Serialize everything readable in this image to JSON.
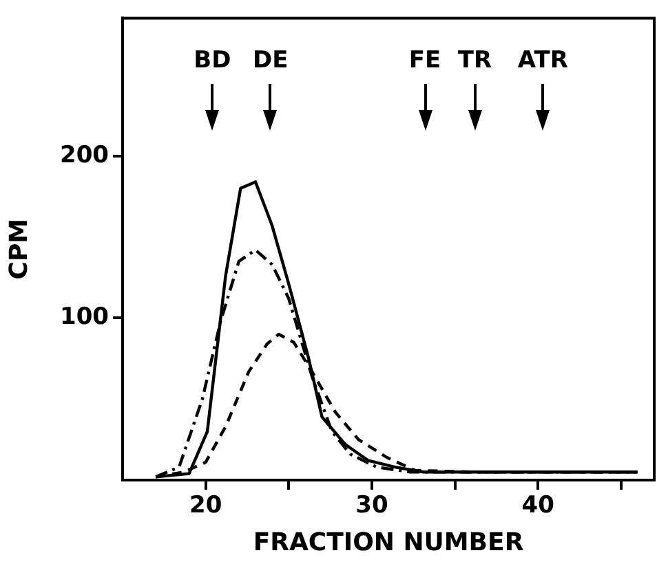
{
  "chart_data": {
    "type": "line",
    "xlabel": "FRACTION NUMBER",
    "ylabel": "CPM",
    "xlim": [
      15,
      47
    ],
    "ylim": [
      0,
      285
    ],
    "xticks": [
      20,
      {
        "value": 25,
        "label": null
      },
      30,
      {
        "value": 35,
        "label": null
      },
      40,
      {
        "value": 45,
        "label": null
      }
    ],
    "yticks": [
      100,
      200
    ],
    "grid": false,
    "legend": false,
    "marker": "none",
    "series": [
      {
        "color": "#000000",
        "line_style": "solid",
        "x": [
          17,
          19,
          20.1,
          21.2,
          22.1,
          23,
          24,
          25,
          26.2,
          27,
          28.4,
          29.8,
          31.4,
          33.1,
          36,
          40,
          43,
          46
        ],
        "values": [
          2,
          4,
          30,
          126,
          180,
          184,
          157,
          121,
          75,
          39,
          22,
          12,
          8,
          5,
          5,
          5,
          5,
          5
        ]
      },
      {
        "color": "#000000",
        "line_style": "dashdot",
        "x": [
          17,
          18.4,
          19.8,
          20.9,
          22,
          23,
          24,
          25,
          26.4,
          27.6,
          28.7,
          30.3,
          32.3,
          36,
          40,
          43,
          46
        ],
        "values": [
          2,
          8,
          50,
          98,
          135,
          142,
          133,
          112,
          64,
          30,
          16,
          8,
          5,
          5,
          5,
          5,
          5
        ]
      },
      {
        "color": "#000000",
        "line_style": "dashed",
        "x": [
          17,
          18.7,
          20,
          21.2,
          22.6,
          23.7,
          24.4,
          25.3,
          26.4,
          27.8,
          29.2,
          30.9,
          32.6,
          36,
          40,
          43,
          46
        ],
        "values": [
          2,
          5,
          11,
          33,
          67,
          84,
          90,
          85,
          67,
          42,
          25,
          14,
          6,
          5,
          5,
          5,
          5
        ]
      }
    ],
    "ref_lines": [
      {
        "axis": "x",
        "value": 20.4,
        "label": "BD"
      },
      {
        "axis": "x",
        "value": 23.9,
        "label": "DE"
      },
      {
        "axis": "x",
        "value": 33.2,
        "label": "FE"
      },
      {
        "axis": "x",
        "value": 36.2,
        "label": "TR"
      },
      {
        "axis": "x",
        "value": 40.3,
        "label": "ATR"
      }
    ]
  }
}
